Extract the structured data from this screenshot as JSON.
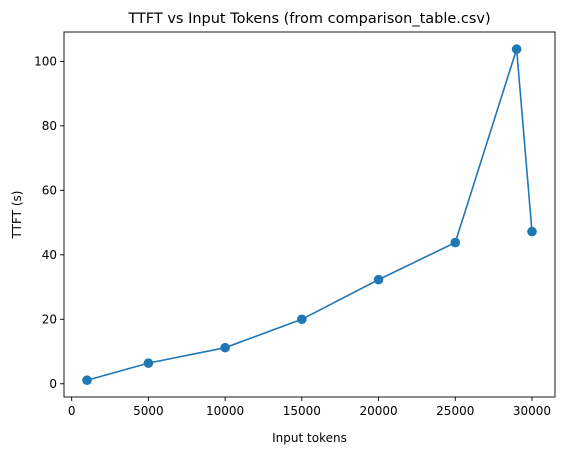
{
  "chart_data": {
    "type": "line",
    "title": "TTFT vs Input Tokens (from comparison_table.csv)",
    "xlabel": "Input tokens",
    "ylabel": "TTFT (s)",
    "xlim": [
      -500,
      31500
    ],
    "ylim": [
      -4.1,
      109.1
    ],
    "xticks": [
      0,
      5000,
      10000,
      15000,
      20000,
      25000,
      30000
    ],
    "yticks": [
      0,
      20,
      40,
      60,
      80,
      100
    ],
    "grid": false,
    "marker": "circle",
    "color": "#1f77b4",
    "series": [
      {
        "x": [
          1000,
          5000,
          10000,
          15000,
          20000,
          25000,
          29000,
          30000
        ],
        "y": [
          1.1,
          6.4,
          11.2,
          20.0,
          32.3,
          43.8,
          103.8,
          47.2
        ]
      }
    ]
  }
}
